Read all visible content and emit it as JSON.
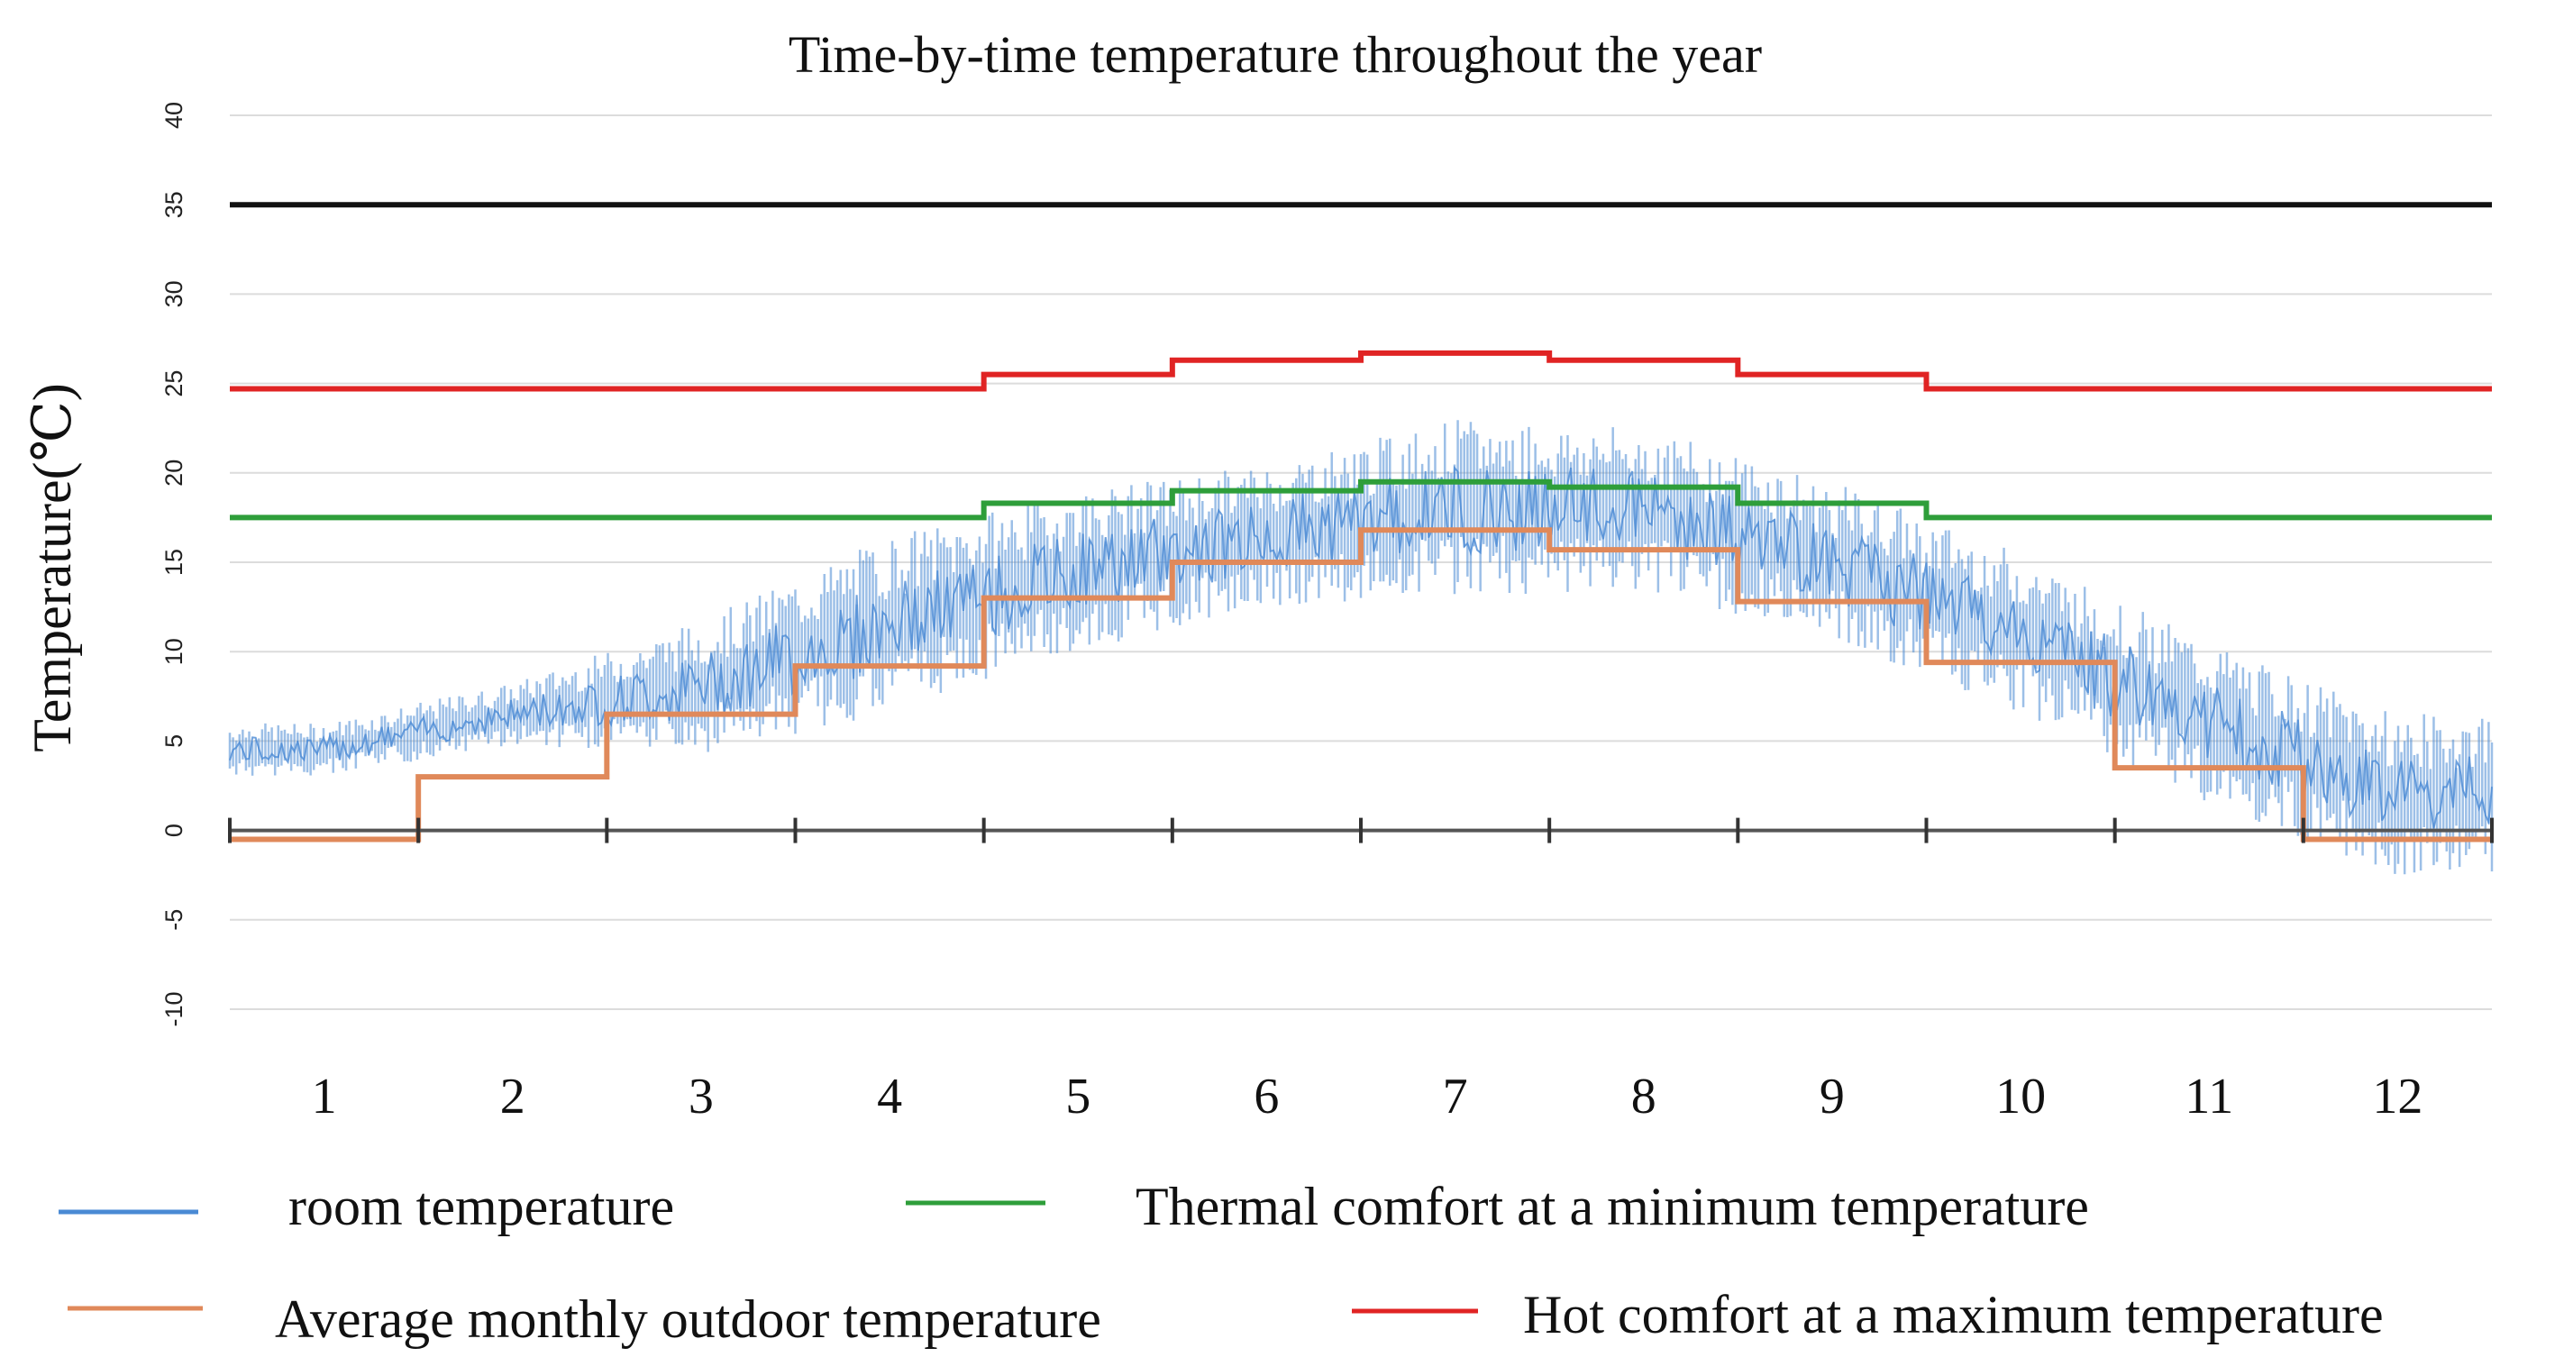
{
  "chart_data": {
    "type": "line",
    "title": "Time-by-time temperature throughout the year",
    "xlabel": "",
    "ylabel": "Temperature(℃)",
    "x_ticks": [
      "1",
      "2",
      "3",
      "4",
      "5",
      "6",
      "7",
      "8",
      "9",
      "10",
      "11",
      "12"
    ],
    "y_ticks": [
      "40",
      "35",
      "30",
      "25",
      "20",
      "15",
      "10",
      "5",
      "0",
      "-5",
      "-10"
    ],
    "ylim": [
      -10,
      40
    ],
    "grid": true,
    "legend_position": "bottom",
    "reference_line": {
      "value": 35,
      "color": "#111111"
    },
    "zero_axis": {
      "value": 0,
      "color": "#555555"
    },
    "month_boundaries": [
      0,
      1,
      2,
      3,
      4,
      5,
      6,
      7,
      8,
      9,
      10,
      11,
      12
    ],
    "series": [
      {
        "name": "room temperature",
        "kind": "hourly-band",
        "color": "#4a8ad4",
        "monthly_center": [
          4.5,
          6.5,
          8.0,
          11.5,
          14.5,
          16.5,
          18.0,
          18.0,
          15.0,
          11.0,
          6.0,
          2.0
        ],
        "monthly_spread": [
          3.0,
          3.5,
          7.5,
          10.0,
          9.0,
          8.0,
          10.0,
          9.0,
          9.0,
          9.0,
          9.0,
          9.0
        ]
      },
      {
        "name": "Thermal comfort at a minimum temperature",
        "kind": "monthly-step",
        "color": "#2e9e3a",
        "values": [
          17.5,
          17.5,
          17.5,
          17.5,
          18.3,
          19.0,
          19.5,
          19.2,
          18.3,
          17.5,
          17.5,
          17.5
        ]
      },
      {
        "name": "Average monthly outdoor temperature",
        "kind": "monthly-step",
        "color": "#e0895a",
        "values": [
          -0.5,
          3.0,
          6.5,
          9.2,
          13.0,
          15.0,
          16.8,
          15.7,
          12.8,
          9.4,
          3.5,
          -0.5
        ]
      },
      {
        "name": "Hot comfort at a maximum temperature",
        "kind": "monthly-step",
        "color": "#e02424",
        "values": [
          24.7,
          24.7,
          24.7,
          24.7,
          25.5,
          26.3,
          26.7,
          26.3,
          25.5,
          24.7,
          24.7,
          24.7
        ]
      }
    ]
  }
}
